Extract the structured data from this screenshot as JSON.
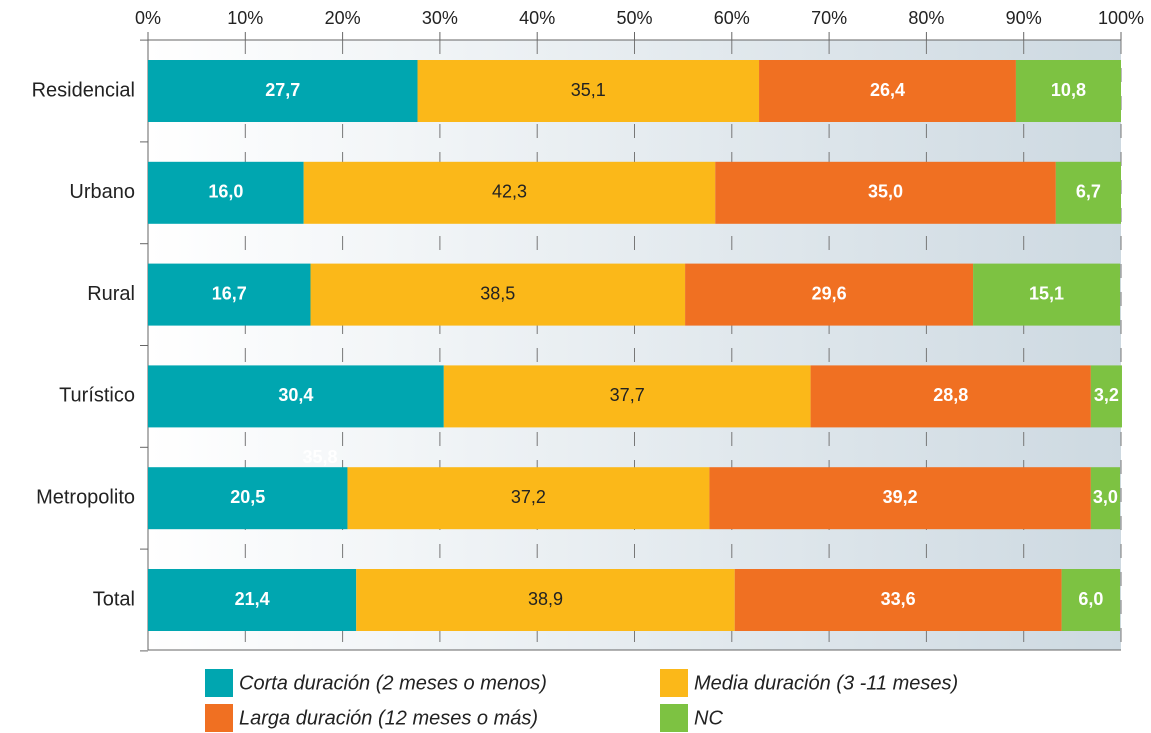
{
  "chart_data": {
    "type": "stacked-barh",
    "categories": [
      "Residencial",
      "Urbano",
      "Rural",
      "Turístico",
      "Metropolito",
      "Total"
    ],
    "series": [
      {
        "name": "Corta duración (2 meses o menos)",
        "color": "#00a6b0",
        "values": [
          27.7,
          16.0,
          16.7,
          30.4,
          20.5,
          21.4
        ],
        "value_labels": [
          "27,7",
          "16,0",
          "16,7",
          "30,4",
          "20,5",
          "21,4"
        ]
      },
      {
        "name": "Media duración (3 -11 meses)",
        "color": "#fbb819",
        "values": [
          35.1,
          42.3,
          38.5,
          37.7,
          37.2,
          38.9
        ],
        "value_labels": [
          "35,1",
          "42,3",
          "38,5",
          "37,7",
          "37,2",
          "38,9"
        ]
      },
      {
        "name": "Larga duración (12 meses o más)",
        "color": "#f07022",
        "values": [
          26.4,
          35.0,
          29.6,
          28.8,
          39.2,
          33.6
        ],
        "value_labels": [
          "26,4",
          "35,0",
          "29,6",
          "28,8",
          "39,2",
          "33,6"
        ]
      },
      {
        "name": "NC",
        "color": "#7dc242",
        "values": [
          10.8,
          6.7,
          15.1,
          3.2,
          3.0,
          6.0
        ],
        "value_labels": [
          "10,8",
          "6,7",
          "15,1",
          "3,2",
          "3,0",
          "6,0"
        ]
      }
    ],
    "annotations": [
      "35,8"
    ],
    "xlim": [
      0,
      100
    ],
    "xticks": [
      {
        "value": 0,
        "label": "0%"
      },
      {
        "value": 10,
        "label": "10%"
      },
      {
        "value": 20,
        "label": "20%"
      },
      {
        "value": 30,
        "label": "30%"
      },
      {
        "value": 40,
        "label": "40%"
      },
      {
        "value": 50,
        "label": "50%"
      },
      {
        "value": 60,
        "label": "60%"
      },
      {
        "value": 70,
        "label": "70%"
      },
      {
        "value": 80,
        "label": "80%"
      },
      {
        "value": 90,
        "label": "90%"
      },
      {
        "value": 100,
        "label": "100%"
      }
    ],
    "grid": true,
    "legend": "bottom"
  }
}
